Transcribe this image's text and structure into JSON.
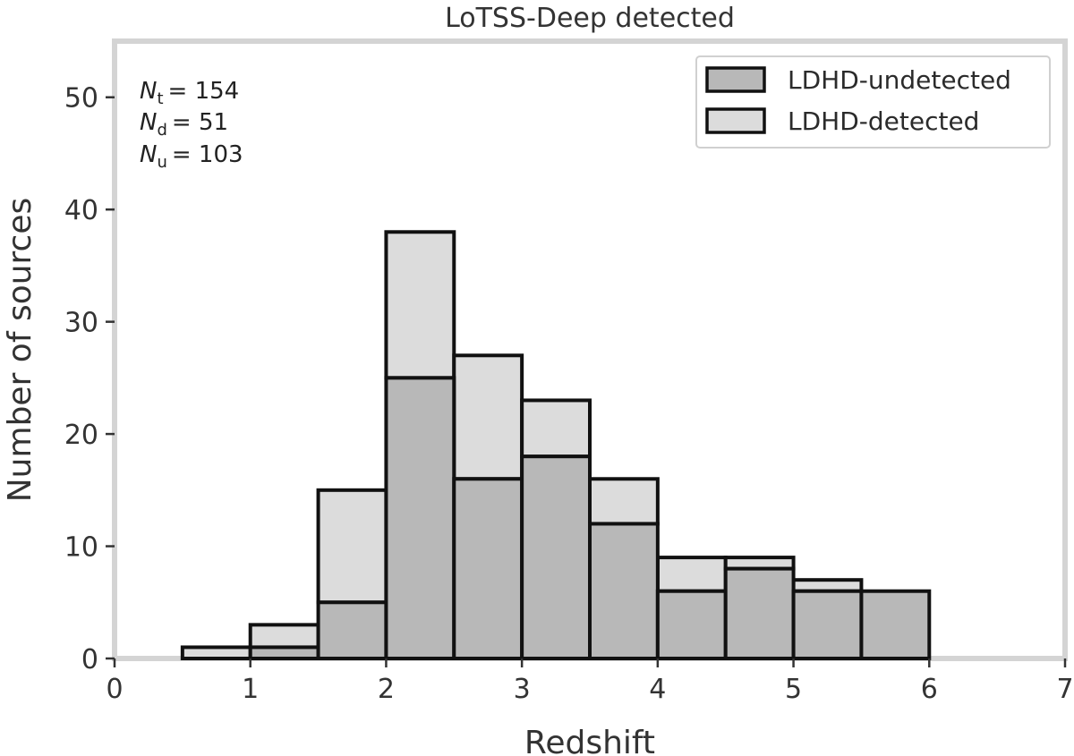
{
  "chart_data": {
    "type": "bar",
    "subtype": "stacked-histogram",
    "title": "LoTSS-Deep detected",
    "xlabel": "Redshift",
    "ylabel": "Number of sources",
    "xlim": [
      0,
      7
    ],
    "ylim": [
      0,
      55
    ],
    "xticks": [
      0,
      1,
      2,
      3,
      4,
      5,
      6,
      7
    ],
    "yticks": [
      0,
      10,
      20,
      30,
      40,
      50
    ],
    "bin_edges": [
      0.5,
      1.0,
      1.5,
      2.0,
      2.5,
      3.0,
      3.5,
      4.0,
      4.5,
      5.0,
      5.5,
      6.0
    ],
    "series": [
      {
        "name": "LDHD-undetected",
        "color": "#b8b8b8",
        "values": [
          0,
          1,
          5,
          25,
          16,
          18,
          12,
          6,
          8,
          6,
          6
        ]
      },
      {
        "name": "LDHD-detected",
        "color": "#dcdcdc",
        "values": [
          1,
          2,
          10,
          13,
          11,
          5,
          4,
          3,
          1,
          1,
          0
        ]
      }
    ],
    "legend_position": "top-right",
    "grid": false,
    "frame_color": "#d4d4d4",
    "edge_color": "#111111"
  },
  "annotations": {
    "total": {
      "symbol": "N",
      "sub": "t",
      "eq": "= 154"
    },
    "detected": {
      "symbol": "N",
      "sub": "d",
      "eq": "= 51"
    },
    "undetected": {
      "symbol": "N",
      "sub": "u",
      "eq": "= 103"
    }
  }
}
